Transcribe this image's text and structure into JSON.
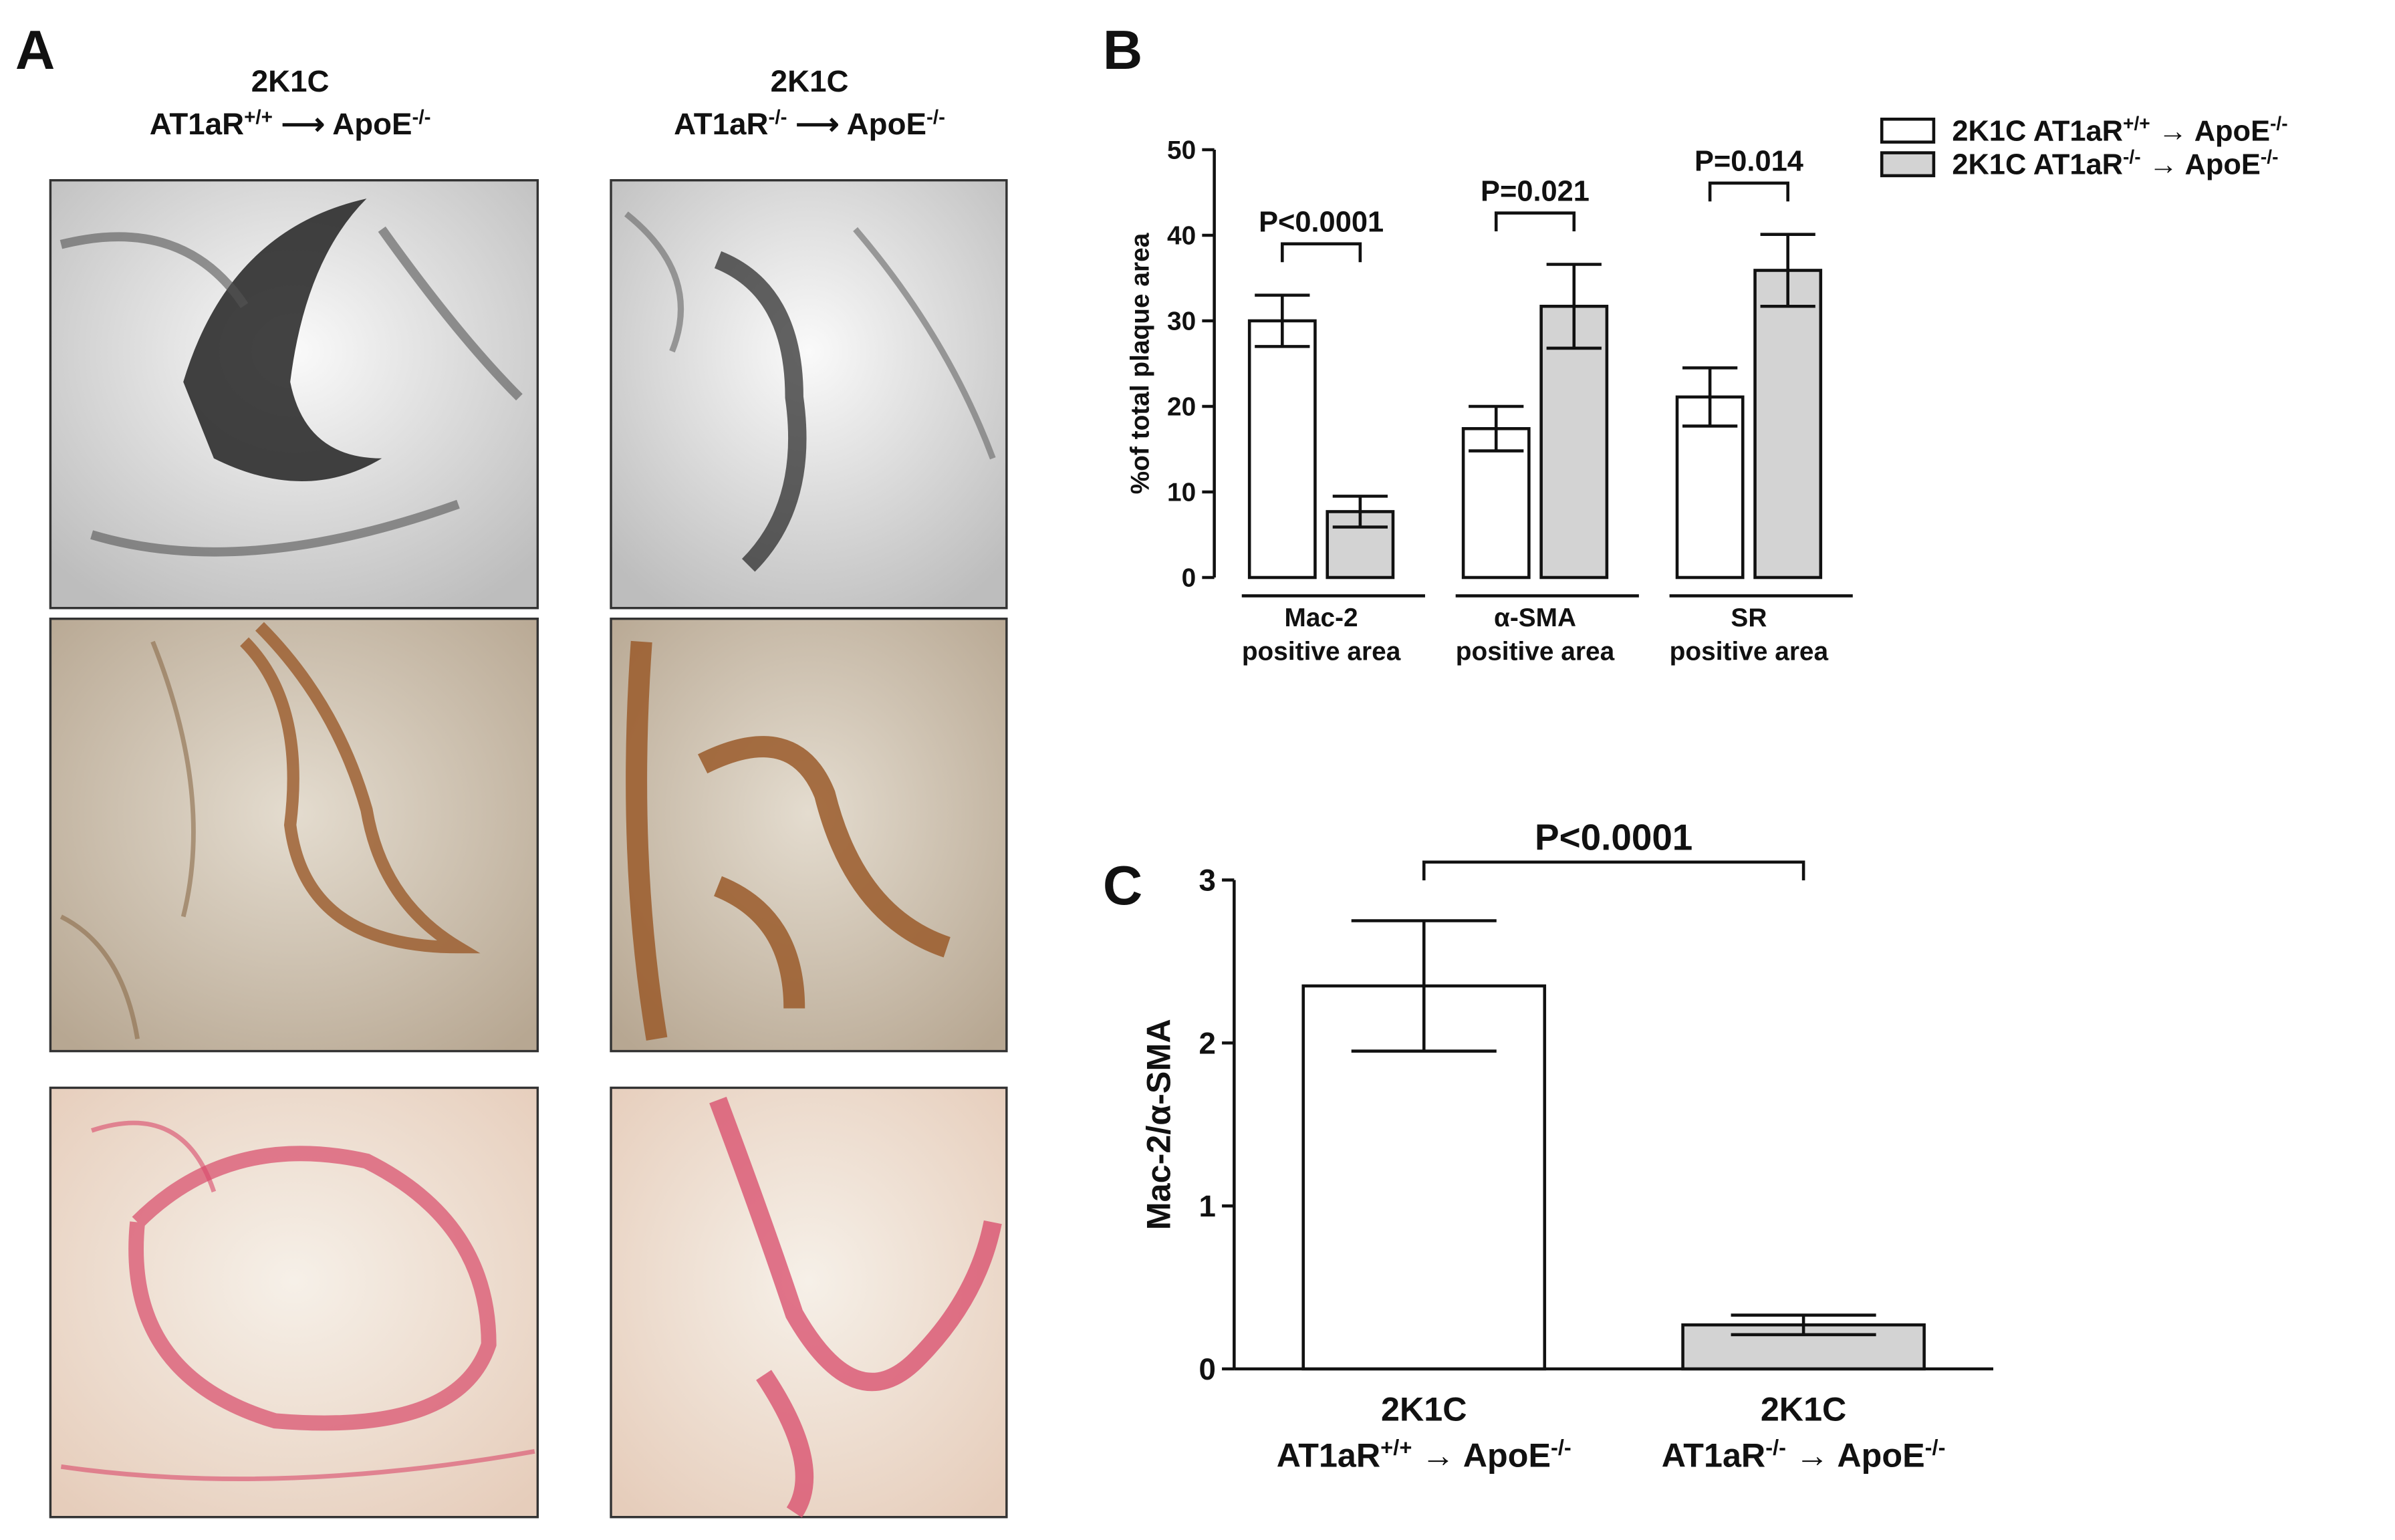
{
  "panel_labels": [
    "A",
    "B",
    "C"
  ],
  "panel_a": {
    "columns": [
      {
        "title": "2K1C",
        "subtitle": "AT1aR+/+ ⟶ ApoE-/-"
      },
      {
        "title": "2K1C",
        "subtitle": "AT1aR-/- ⟶ ApoE-/-"
      }
    ]
  },
  "chart_data": [
    {
      "type": "bar",
      "ylabel": "%of total plaque area",
      "categories": [
        "Mac-2 positive area",
        "α-SMA positive area",
        "SR positive area"
      ],
      "series": [
        {
          "name": "2K1C AT1aR+/+ → ApoE-/-",
          "color": "#ffffff",
          "values": [
            30,
            17.4,
            21.1
          ],
          "errors": [
            3,
            2.6,
            3.4
          ]
        },
        {
          "name": "2K1C AT1aR-/- → ApoE-/-",
          "color": "#d3d3d3",
          "values": [
            7.7,
            31.7,
            35.9
          ],
          "errors": [
            1.8,
            4.9,
            4.2
          ]
        }
      ],
      "annotations": [
        "P<0.0001",
        "P=0.021",
        "P=0.014"
      ],
      "ylim": [
        0,
        50
      ],
      "yticks": [
        0,
        10,
        20,
        30,
        40,
        50
      ],
      "legend": "top-right"
    },
    {
      "type": "bar",
      "ylabel": "Mac-2/α-SMA",
      "categories": [
        "2K1C AT1aR+/+ → ApoE-/-",
        "2K1C AT1aR-/- → ApoE-/-"
      ],
      "values": [
        2.35,
        0.27
      ],
      "errors": [
        0.4,
        0.06
      ],
      "colors": [
        "#ffffff",
        "#d3d3d3"
      ],
      "annotations": [
        "P<0.0001"
      ],
      "ylim": [
        0,
        3
      ],
      "yticks": [
        0,
        1,
        2,
        3
      ]
    }
  ]
}
